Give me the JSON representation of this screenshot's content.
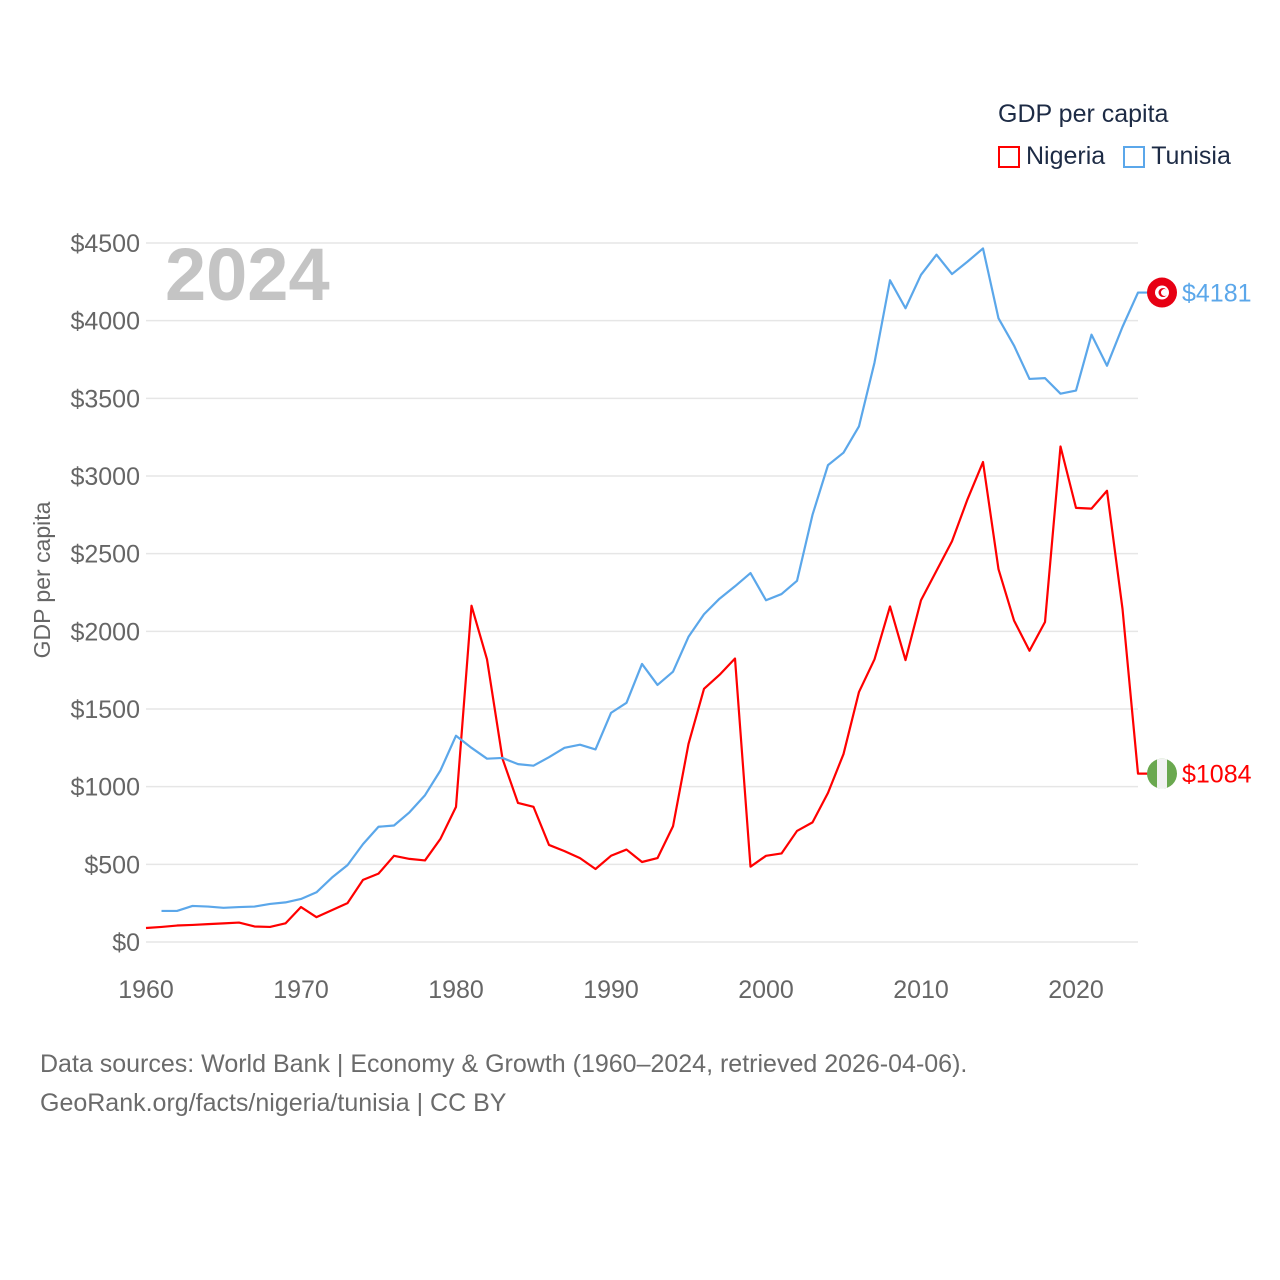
{
  "chart_data": {
    "type": "line",
    "title": "GDP per capita",
    "ylabel": "GDP per capita",
    "xlabel": "",
    "year_label": "2024",
    "xlim": [
      1960,
      2024
    ],
    "ylim": [
      0,
      4500
    ],
    "x_ticks": [
      "1960",
      "1970",
      "1980",
      "1990",
      "2000",
      "2010",
      "2020"
    ],
    "y_ticks": [
      "$0",
      "$500",
      "$1000",
      "$1500",
      "$2000",
      "$2500",
      "$3000",
      "$3500",
      "$4000",
      "$4500"
    ],
    "grid": true,
    "legend_placement": "top-right",
    "series": [
      {
        "name": "Nigeria",
        "color": "#ff0000",
        "end_label": "$1084",
        "flag": "nigeria-flag",
        "start_year": 1960,
        "values": [
          90,
          97,
          106,
          110,
          115,
          120,
          125,
          100,
          97,
          120,
          225,
          160,
          205,
          250,
          400,
          440,
          555,
          535,
          525,
          665,
          870,
          2165,
          1820,
          1180,
          895,
          870,
          625,
          585,
          540,
          470,
          555,
          595,
          515,
          540,
          745,
          1275,
          1630,
          1720,
          1825,
          485,
          555,
          570,
          715,
          770,
          960,
          1210,
          1610,
          1820,
          2160,
          1815,
          2200,
          2390,
          2580,
          2850,
          3090,
          2400,
          2070,
          1875,
          2060,
          3190,
          2795,
          2790,
          2905,
          2145,
          1084
        ]
      },
      {
        "name": "Tunisia",
        "color": "#5ba7ea",
        "end_label": "$4181",
        "flag": "tunisia-flag",
        "start_year": 1961,
        "values": [
          200,
          200,
          232,
          228,
          220,
          225,
          228,
          245,
          255,
          277,
          320,
          415,
          495,
          630,
          742,
          750,
          835,
          945,
          1105,
          1328,
          1250,
          1180,
          1185,
          1145,
          1135,
          1190,
          1250,
          1270,
          1240,
          1475,
          1540,
          1790,
          1655,
          1740,
          1965,
          2110,
          2210,
          2290,
          2375,
          2200,
          2240,
          2325,
          2750,
          3070,
          3150,
          3320,
          3730,
          4260,
          4080,
          4295,
          4425,
          4300,
          4380,
          4465,
          4015,
          3840,
          3625,
          3630,
          3530,
          3550,
          3910,
          3710,
          3960,
          4181
        ]
      }
    ]
  },
  "footer": {
    "line1": "Data sources: World Bank | Economy & Growth (1960–2024, retrieved 2026-04-06).",
    "line2": "GeoRank.org/facts/nigeria/tunisia | CC BY"
  }
}
